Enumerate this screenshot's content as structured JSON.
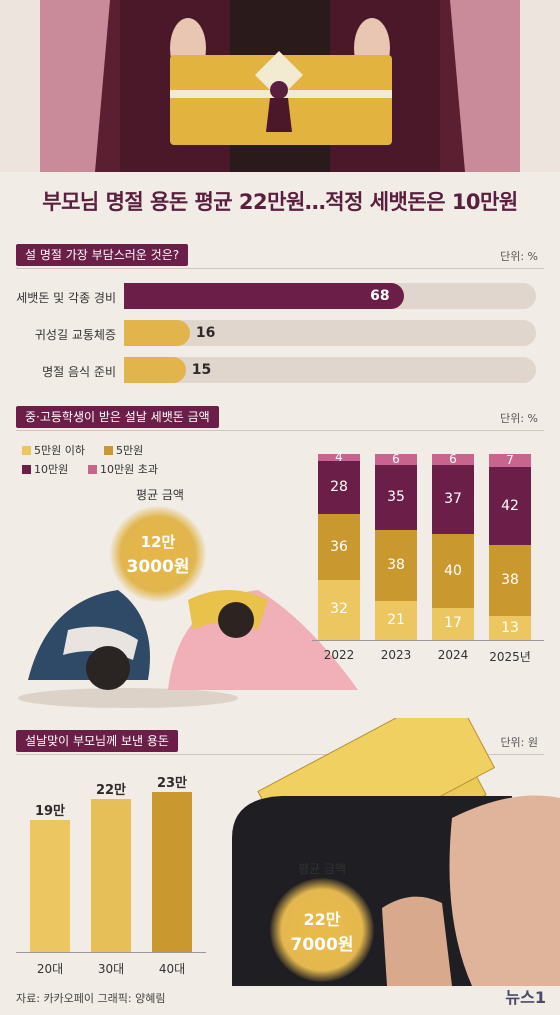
{
  "title": "부모님 명절 용돈 평균 22만원…적정 세뱃돈은 10만원",
  "colors": {
    "burgundy": "#6b1e47",
    "gold": "#e1b44c",
    "gold_dark": "#c9992f",
    "gold_light": "#ecc660",
    "pink": "#c7658f",
    "track": "#e0d6cd"
  },
  "section1": {
    "heading": "설 명절 가장 부담스러운 것은?",
    "unit": "단위: %"
  },
  "section2": {
    "heading": "중·고등학생이 받은 설날 세뱃돈 금액",
    "unit": "단위: %",
    "avg_label": "평균 금액",
    "avg_line1": "12만",
    "avg_line2": "3000원"
  },
  "section3": {
    "heading": "설날맞이 부모님께 보낸 용돈",
    "unit": "단위: 원",
    "avg_label": "평균 금액",
    "avg_line1": "22만",
    "avg_line2": "7000원",
    "banknote": "50000"
  },
  "footer": "자료: 카카오페이  그래픽: 양혜림",
  "logo": "뉴스1",
  "chart_data": [
    {
      "type": "bar",
      "orientation": "horizontal",
      "title": "설 명절 가장 부담스러운 것은?",
      "unit": "단위: %",
      "categories": [
        "세뱃돈 및 각종 경비",
        "귀성길 교통체증",
        "명절 음식 준비"
      ],
      "values": [
        68,
        16,
        15
      ],
      "xlim": [
        0,
        100
      ]
    },
    {
      "type": "bar",
      "stacked": true,
      "title": "중·고등학생이 받은 설날 세뱃돈 금액",
      "unit": "단위: %",
      "categories": [
        "2022",
        "2023",
        "2024",
        "2025년"
      ],
      "series": [
        {
          "name": "5만원 이하",
          "values": [
            32,
            21,
            17,
            13
          ]
        },
        {
          "name": "5만원",
          "values": [
            36,
            38,
            40,
            38
          ]
        },
        {
          "name": "10만원",
          "values": [
            28,
            35,
            37,
            42
          ]
        },
        {
          "name": "10만원 초과",
          "values": [
            4,
            6,
            6,
            7
          ]
        }
      ],
      "ylim": [
        0,
        100
      ]
    },
    {
      "type": "bar",
      "title": "설날맞이 부모님께 보낸 용돈",
      "unit": "단위: 원",
      "categories": [
        "20대",
        "30대",
        "40대"
      ],
      "values": [
        19,
        22,
        23
      ],
      "value_labels": [
        "19만",
        "22만",
        "23만"
      ]
    }
  ]
}
